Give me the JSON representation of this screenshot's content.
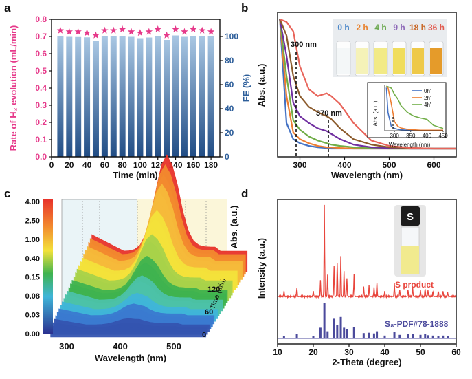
{
  "panels": {
    "a": "a",
    "b": "b",
    "c": "c",
    "d": "d"
  },
  "colors": {
    "pink": "#e6398a",
    "blue": "#2d5e9a",
    "red": "#e8453c",
    "purple": "#4b4a9c",
    "bar_light": "#a9c7e3",
    "bar_dark": "#214d85"
  },
  "chart_data": [
    {
      "id": "a",
      "type": "bar",
      "xlabel": "Time (min)",
      "ylabel_left": "Rate of H₂ evolution (mL/min)",
      "ylabel_right": "FE (%)",
      "xlim": [
        0,
        190
      ],
      "ylim_left": [
        0,
        0.8
      ],
      "ylim_right": [
        0,
        114.3
      ],
      "xticks": [
        "0",
        "20",
        "40",
        "60",
        "80",
        "100",
        "120",
        "140",
        "160",
        "180"
      ],
      "yticks_left": [
        "0.0",
        "0.1",
        "0.2",
        "0.3",
        "0.4",
        "0.5",
        "0.6",
        "0.7",
        "0.8"
      ],
      "yticks_right": [
        "0",
        "20",
        "40",
        "60",
        "80",
        "100"
      ],
      "x": [
        10,
        20,
        30,
        40,
        50,
        60,
        70,
        80,
        90,
        100,
        110,
        120,
        130,
        140,
        150,
        160,
        170,
        180
      ],
      "rate": [
        0.7,
        0.698,
        0.697,
        0.695,
        0.672,
        0.7,
        0.702,
        0.704,
        0.698,
        0.69,
        0.694,
        0.7,
        0.68,
        0.706,
        0.698,
        0.702,
        0.703,
        0.7
      ],
      "fe": [
        105,
        104,
        104,
        103,
        101,
        105,
        105,
        106,
        104,
        103,
        104,
        106,
        101,
        106,
        104,
        106,
        105,
        104
      ]
    },
    {
      "id": "b",
      "type": "line",
      "xlabel": "Wavelength (nm)",
      "ylabel": "Abs. (a.u.)",
      "xlim": [
        250,
        650
      ],
      "xticks": [
        "300",
        "400",
        "500",
        "600"
      ],
      "annotations": [
        "300 nm",
        "370 nm"
      ],
      "vial_labels": [
        "0 h",
        "2 h",
        "4 h",
        "9 h",
        "18 h",
        "36 h"
      ],
      "vial_label_colors": [
        "#4a86c8",
        "#e8822e",
        "#6aa84f",
        "#8e6ab8",
        "#c96a2a",
        "#e25c50"
      ],
      "series_colors": [
        "#4472c4",
        "#ed7d31",
        "#70ad47",
        "#7030a0",
        "#8b5a2b",
        "#e8645a"
      ],
      "main_x": [
        255,
        270,
        285,
        300,
        320,
        340,
        360,
        370,
        390,
        420,
        460,
        500,
        550,
        600,
        650
      ],
      "main_series": [
        [
          0.97,
          0.2,
          0.08,
          0.05,
          0.03,
          0.02,
          0.015,
          0.01,
          0.01,
          0.01,
          0.01,
          0.01,
          0.01,
          0.01,
          0.01
        ],
        [
          0.97,
          0.4,
          0.13,
          0.08,
          0.05,
          0.03,
          0.02,
          0.02,
          0.015,
          0.01,
          0.01,
          0.01,
          0.01,
          0.01,
          0.01
        ],
        [
          0.97,
          0.55,
          0.22,
          0.15,
          0.1,
          0.07,
          0.05,
          0.04,
          0.03,
          0.02,
          0.015,
          0.01,
          0.01,
          0.01,
          0.01
        ],
        [
          0.97,
          0.7,
          0.35,
          0.25,
          0.2,
          0.16,
          0.14,
          0.12,
          0.08,
          0.04,
          0.02,
          0.015,
          0.01,
          0.01,
          0.01
        ],
        [
          0.97,
          0.85,
          0.55,
          0.4,
          0.32,
          0.28,
          0.25,
          0.23,
          0.16,
          0.08,
          0.04,
          0.02,
          0.015,
          0.01,
          0.01
        ],
        [
          0.97,
          0.95,
          0.88,
          0.62,
          0.45,
          0.4,
          0.42,
          0.4,
          0.34,
          0.2,
          0.07,
          0.03,
          0.015,
          0.01,
          0.01
        ]
      ],
      "inset": {
        "xlabel": "Wavelength (nm)",
        "ylabel": "Abs. (a.u.)",
        "xlim": [
          270,
          450
        ],
        "xticks": [
          "300",
          "350",
          "400",
          "450"
        ],
        "legend": [
          "0h'",
          "2h'",
          "4h'"
        ],
        "colors": [
          "#4472c4",
          "#ed7d31",
          "#70ad47"
        ],
        "x": [
          275,
          280,
          290,
          300,
          310,
          320,
          340,
          360,
          380,
          400,
          420,
          450
        ],
        "series": [
          [
            0.95,
            0.4,
            0.1,
            0.05,
            0.03,
            0.02,
            0.01,
            0.01,
            0.01,
            0.01,
            0.01,
            0.01
          ],
          [
            0.98,
            0.95,
            0.6,
            0.2,
            0.1,
            0.06,
            0.03,
            0.02,
            0.01,
            0.01,
            0.01,
            0.01
          ],
          [
            0.98,
            0.97,
            0.94,
            0.8,
            0.7,
            0.55,
            0.4,
            0.32,
            0.28,
            0.25,
            0.12,
            0.05
          ]
        ]
      }
    },
    {
      "id": "c",
      "type": "area",
      "xlabel": "Wavelength (nm)",
      "ylabel": "Abs. (a.u.)",
      "time_label": "Time (min)",
      "time_ticks": [
        "120",
        "60",
        "0"
      ],
      "xticks": [
        "300",
        "400",
        "500"
      ],
      "colorbar_labels": [
        "4.00",
        "2.50",
        "1.00",
        "0.40",
        "0.15",
        "0.08",
        "0.03",
        "0.00"
      ],
      "peak_wavelength": 410
    },
    {
      "id": "d",
      "type": "line",
      "xlabel": "2-Theta (degree)",
      "ylabel": "Intensity (a.u.)",
      "xlim": [
        10,
        60
      ],
      "xticks": [
        "10",
        "20",
        "30",
        "40",
        "50",
        "60"
      ],
      "series": [
        {
          "name": "S product",
          "color": "#e8453c",
          "peaks_x": [
            11.8,
            15.4,
            20.0,
            22.0,
            23.1,
            24.0,
            25.8,
            26.7,
            27.7,
            28.6,
            29.4,
            31.4,
            34.1,
            35.6,
            37.0,
            37.8,
            40.0,
            42.7,
            44.2,
            46.5,
            47.8,
            50.0,
            51.3,
            52.1,
            53.5,
            55.0,
            56.3,
            57.6
          ],
          "peaks_h": [
            0.06,
            0.1,
            0.06,
            0.18,
            1.0,
            0.24,
            0.33,
            0.38,
            0.44,
            0.28,
            0.2,
            0.24,
            0.11,
            0.12,
            0.1,
            0.15,
            0.06,
            0.14,
            0.07,
            0.08,
            0.1,
            0.07,
            0.09,
            0.07,
            0.06,
            0.06,
            0.06,
            0.05
          ]
        },
        {
          "name": "S₈-PDF#78-1888",
          "color": "#4b4a9c",
          "peaks_x": [
            11.8,
            15.4,
            20.0,
            22.0,
            23.1,
            24.0,
            25.8,
            26.7,
            27.7,
            28.6,
            29.4,
            31.4,
            34.1,
            35.6,
            37.0,
            37.8,
            40.0,
            42.7,
            44.2,
            46.5,
            47.8,
            50.0,
            51.3,
            52.1,
            53.5,
            55.0,
            56.3,
            57.6
          ],
          "peaks_h": [
            0.06,
            0.12,
            0.07,
            0.3,
            1.0,
            0.2,
            0.55,
            0.38,
            0.6,
            0.3,
            0.25,
            0.32,
            0.15,
            0.16,
            0.14,
            0.2,
            0.08,
            0.18,
            0.1,
            0.12,
            0.12,
            0.1,
            0.12,
            0.09,
            0.08,
            0.07,
            0.08,
            0.06
          ]
        }
      ],
      "vial_label": "S"
    }
  ]
}
